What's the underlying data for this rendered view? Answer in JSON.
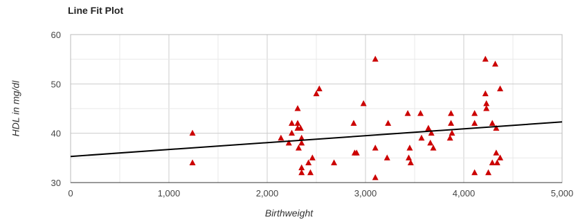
{
  "chart_data": {
    "type": "scatter",
    "title": "Line Fit Plot",
    "xlabel": "Birthweight",
    "ylabel": "HDL in mg/dl",
    "xlim": [
      0,
      5000
    ],
    "ylim": [
      30,
      60
    ],
    "xticks": [
      0,
      1000,
      2000,
      3000,
      4000,
      5000
    ],
    "xtick_labels": [
      "0",
      "1,000",
      "2,000",
      "3,000",
      "4,000",
      "5,000"
    ],
    "yticks": [
      30,
      40,
      50,
      60
    ],
    "ytick_labels": [
      "30",
      "40",
      "50",
      "60"
    ],
    "grid": true,
    "marker_color": "#cc0000",
    "line_color": "#000000",
    "fit_line": {
      "x": [
        0,
        5000
      ],
      "y": [
        35.3,
        42.3
      ]
    },
    "series": [
      {
        "marker": "triangle",
        "points": [
          [
            1240,
            40
          ],
          [
            1240,
            34
          ],
          [
            2140,
            39
          ],
          [
            2220,
            38
          ],
          [
            2250,
            40
          ],
          [
            2250,
            42
          ],
          [
            2310,
            45
          ],
          [
            2310,
            42
          ],
          [
            2310,
            41
          ],
          [
            2320,
            37
          ],
          [
            2340,
            41
          ],
          [
            2350,
            39
          ],
          [
            2350,
            38
          ],
          [
            2350,
            33
          ],
          [
            2350,
            32
          ],
          [
            2420,
            34
          ],
          [
            2440,
            32
          ],
          [
            2460,
            35
          ],
          [
            2500,
            48
          ],
          [
            2530,
            49
          ],
          [
            2680,
            34
          ],
          [
            2880,
            42
          ],
          [
            2890,
            36
          ],
          [
            2910,
            36
          ],
          [
            2980,
            46
          ],
          [
            3100,
            55
          ],
          [
            3100,
            37
          ],
          [
            3100,
            31
          ],
          [
            3230,
            42
          ],
          [
            3220,
            35
          ],
          [
            3430,
            44
          ],
          [
            3450,
            37
          ],
          [
            3440,
            35
          ],
          [
            3460,
            34
          ],
          [
            3560,
            44
          ],
          [
            3570,
            39
          ],
          [
            3640,
            41
          ],
          [
            3670,
            40
          ],
          [
            3660,
            38
          ],
          [
            3690,
            37
          ],
          [
            3870,
            44
          ],
          [
            3870,
            42
          ],
          [
            3880,
            40
          ],
          [
            3860,
            39
          ],
          [
            4110,
            44
          ],
          [
            4110,
            42
          ],
          [
            4110,
            32
          ],
          [
            4220,
            55
          ],
          [
            4220,
            48
          ],
          [
            4230,
            46
          ],
          [
            4230,
            45
          ],
          [
            4250,
            32
          ],
          [
            4290,
            42
          ],
          [
            4290,
            34
          ],
          [
            4320,
            54
          ],
          [
            4330,
            41
          ],
          [
            4330,
            36
          ],
          [
            4340,
            34
          ],
          [
            4370,
            49
          ],
          [
            4370,
            35
          ]
        ]
      }
    ]
  }
}
